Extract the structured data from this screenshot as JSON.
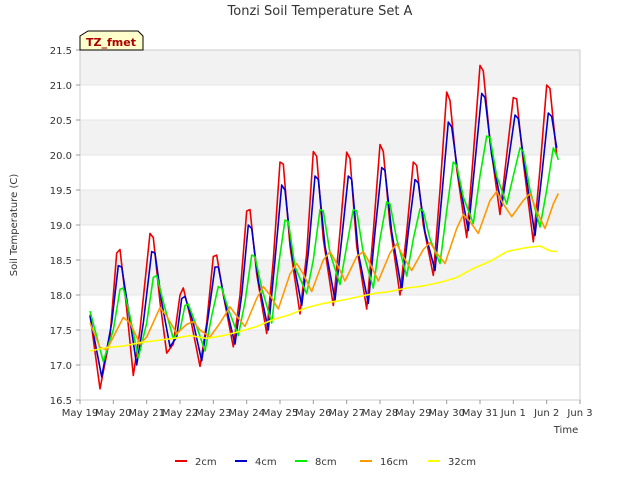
{
  "chart_data": {
    "type": "line",
    "title": "Tonzi Soil Temperature Set A",
    "xlabel": "Time",
    "ylabel": "Soil Temperature (C)",
    "annotation": "TZ_fmet",
    "xlim": [
      0,
      15
    ],
    "ylim": [
      16.5,
      21.5
    ],
    "yticks": [
      16.5,
      17.0,
      17.5,
      18.0,
      18.5,
      19.0,
      19.5,
      20.0,
      20.5,
      21.0,
      21.5
    ],
    "ytick_labels": [
      "16.5",
      "17.0",
      "17.5",
      "18.0",
      "18.5",
      "19.0",
      "19.5",
      "20.0",
      "20.5",
      "21.0",
      "21.5"
    ],
    "xtick_labels": [
      "May 19",
      "May 20",
      "May 21",
      "May 22",
      "May 23",
      "May 24",
      "May 25",
      "May 26",
      "May 27",
      "May 28",
      "May 29",
      "May 30",
      "May 31",
      "Jun 1",
      "Jun 2",
      "Jun 3"
    ],
    "grid": "horizontal bands",
    "legend_position": "bottom-center",
    "x_units": "days since May 19",
    "series": [
      {
        "name": "2cm",
        "color": "#ee0000",
        "points": [
          [
            0.3,
            17.72
          ],
          [
            0.6,
            16.66
          ],
          [
            0.9,
            17.4
          ],
          [
            1.1,
            18.6
          ],
          [
            1.2,
            18.65
          ],
          [
            1.4,
            17.8
          ],
          [
            1.6,
            16.85
          ],
          [
            1.8,
            17.5
          ],
          [
            2.1,
            18.88
          ],
          [
            2.2,
            18.82
          ],
          [
            2.4,
            17.9
          ],
          [
            2.6,
            17.17
          ],
          [
            2.8,
            17.3
          ],
          [
            3.0,
            18.0
          ],
          [
            3.1,
            18.1
          ],
          [
            3.3,
            17.7
          ],
          [
            3.6,
            16.98
          ],
          [
            3.8,
            17.6
          ],
          [
            4.0,
            18.55
          ],
          [
            4.1,
            18.57
          ],
          [
            4.3,
            18.0
          ],
          [
            4.6,
            17.26
          ],
          [
            4.8,
            18.0
          ],
          [
            5.0,
            19.2
          ],
          [
            5.1,
            19.22
          ],
          [
            5.3,
            18.3
          ],
          [
            5.6,
            17.45
          ],
          [
            5.8,
            18.5
          ],
          [
            6.0,
            19.9
          ],
          [
            6.1,
            19.87
          ],
          [
            6.3,
            18.7
          ],
          [
            6.6,
            17.73
          ],
          [
            6.8,
            18.6
          ],
          [
            7.0,
            20.05
          ],
          [
            7.1,
            19.98
          ],
          [
            7.3,
            18.8
          ],
          [
            7.6,
            17.85
          ],
          [
            7.8,
            18.9
          ],
          [
            8.0,
            20.04
          ],
          [
            8.1,
            19.95
          ],
          [
            8.3,
            18.7
          ],
          [
            8.6,
            17.8
          ],
          [
            8.8,
            18.9
          ],
          [
            9.0,
            20.15
          ],
          [
            9.1,
            20.05
          ],
          [
            9.3,
            19.0
          ],
          [
            9.6,
            18.0
          ],
          [
            9.8,
            18.9
          ],
          [
            10.0,
            19.9
          ],
          [
            10.1,
            19.85
          ],
          [
            10.3,
            19.0
          ],
          [
            10.6,
            18.28
          ],
          [
            10.8,
            19.5
          ],
          [
            11.0,
            20.9
          ],
          [
            11.1,
            20.78
          ],
          [
            11.3,
            19.8
          ],
          [
            11.6,
            18.82
          ],
          [
            11.8,
            20.0
          ],
          [
            12.0,
            21.28
          ],
          [
            12.1,
            21.2
          ],
          [
            12.3,
            20.2
          ],
          [
            12.6,
            19.15
          ],
          [
            12.8,
            20.0
          ],
          [
            13.0,
            20.82
          ],
          [
            13.1,
            20.8
          ],
          [
            13.3,
            19.9
          ],
          [
            13.6,
            18.76
          ],
          [
            13.8,
            19.8
          ],
          [
            14.0,
            21.0
          ],
          [
            14.1,
            20.95
          ],
          [
            14.3,
            20.0
          ]
        ]
      },
      {
        "name": "4cm",
        "color": "#0000cc",
        "points": [
          [
            0.3,
            17.7
          ],
          [
            0.65,
            16.83
          ],
          [
            0.95,
            17.6
          ],
          [
            1.15,
            18.42
          ],
          [
            1.25,
            18.4
          ],
          [
            1.45,
            17.8
          ],
          [
            1.7,
            17.0
          ],
          [
            1.9,
            17.6
          ],
          [
            2.15,
            18.62
          ],
          [
            2.25,
            18.6
          ],
          [
            2.45,
            17.9
          ],
          [
            2.7,
            17.26
          ],
          [
            2.9,
            17.4
          ],
          [
            3.05,
            17.95
          ],
          [
            3.15,
            17.98
          ],
          [
            3.4,
            17.6
          ],
          [
            3.65,
            17.06
          ],
          [
            3.85,
            17.7
          ],
          [
            4.05,
            18.4
          ],
          [
            4.15,
            18.4
          ],
          [
            4.35,
            17.9
          ],
          [
            4.65,
            17.3
          ],
          [
            4.85,
            18.0
          ],
          [
            5.05,
            19.0
          ],
          [
            5.15,
            18.95
          ],
          [
            5.35,
            18.2
          ],
          [
            5.65,
            17.5
          ],
          [
            5.85,
            18.5
          ],
          [
            6.05,
            19.57
          ],
          [
            6.15,
            19.5
          ],
          [
            6.35,
            18.6
          ],
          [
            6.65,
            17.85
          ],
          [
            6.85,
            18.6
          ],
          [
            7.05,
            19.7
          ],
          [
            7.15,
            19.65
          ],
          [
            7.35,
            18.7
          ],
          [
            7.65,
            17.93
          ],
          [
            7.85,
            18.8
          ],
          [
            8.05,
            19.7
          ],
          [
            8.15,
            19.65
          ],
          [
            8.35,
            18.6
          ],
          [
            8.65,
            17.88
          ],
          [
            8.85,
            18.9
          ],
          [
            9.05,
            19.82
          ],
          [
            9.15,
            19.78
          ],
          [
            9.35,
            18.9
          ],
          [
            9.65,
            18.07
          ],
          [
            9.85,
            18.9
          ],
          [
            10.05,
            19.65
          ],
          [
            10.15,
            19.6
          ],
          [
            10.35,
            18.9
          ],
          [
            10.65,
            18.35
          ],
          [
            10.85,
            19.4
          ],
          [
            11.05,
            20.47
          ],
          [
            11.15,
            20.4
          ],
          [
            11.35,
            19.7
          ],
          [
            11.65,
            18.92
          ],
          [
            11.85,
            19.9
          ],
          [
            12.05,
            20.88
          ],
          [
            12.15,
            20.82
          ],
          [
            12.35,
            20.0
          ],
          [
            12.65,
            19.27
          ],
          [
            12.85,
            19.9
          ],
          [
            13.05,
            20.57
          ],
          [
            13.15,
            20.52
          ],
          [
            13.35,
            19.8
          ],
          [
            13.65,
            18.85
          ],
          [
            13.85,
            19.7
          ],
          [
            14.05,
            20.6
          ],
          [
            14.15,
            20.55
          ],
          [
            14.3,
            20.1
          ]
        ]
      },
      {
        "name": "8cm",
        "color": "#00ee00",
        "points": [
          [
            0.3,
            17.77
          ],
          [
            0.7,
            17.05
          ],
          [
            1.0,
            17.5
          ],
          [
            1.2,
            18.08
          ],
          [
            1.3,
            18.1
          ],
          [
            1.5,
            17.7
          ],
          [
            1.75,
            17.1
          ],
          [
            2.0,
            17.6
          ],
          [
            2.2,
            18.25
          ],
          [
            2.3,
            18.28
          ],
          [
            2.5,
            17.9
          ],
          [
            2.8,
            17.38
          ],
          [
            3.0,
            17.5
          ],
          [
            3.15,
            17.85
          ],
          [
            3.25,
            17.87
          ],
          [
            3.5,
            17.55
          ],
          [
            3.75,
            17.2
          ],
          [
            3.95,
            17.7
          ],
          [
            4.15,
            18.12
          ],
          [
            4.25,
            18.1
          ],
          [
            4.45,
            17.8
          ],
          [
            4.75,
            17.42
          ],
          [
            4.95,
            17.9
          ],
          [
            5.15,
            18.57
          ],
          [
            5.25,
            18.55
          ],
          [
            5.45,
            18.1
          ],
          [
            5.75,
            17.6
          ],
          [
            5.95,
            18.4
          ],
          [
            6.15,
            19.07
          ],
          [
            6.25,
            19.05
          ],
          [
            6.45,
            18.4
          ],
          [
            6.8,
            18.02
          ],
          [
            7.0,
            18.5
          ],
          [
            7.2,
            19.22
          ],
          [
            7.3,
            19.2
          ],
          [
            7.5,
            18.6
          ],
          [
            7.8,
            18.15
          ],
          [
            8.0,
            18.7
          ],
          [
            8.2,
            19.22
          ],
          [
            8.3,
            19.2
          ],
          [
            8.5,
            18.6
          ],
          [
            8.8,
            18.1
          ],
          [
            9.0,
            18.8
          ],
          [
            9.2,
            19.33
          ],
          [
            9.3,
            19.3
          ],
          [
            9.5,
            18.8
          ],
          [
            9.8,
            18.27
          ],
          [
            10.0,
            18.8
          ],
          [
            10.2,
            19.23
          ],
          [
            10.3,
            19.2
          ],
          [
            10.5,
            18.8
          ],
          [
            10.8,
            18.45
          ],
          [
            11.0,
            19.2
          ],
          [
            11.2,
            19.9
          ],
          [
            11.3,
            19.85
          ],
          [
            11.5,
            19.4
          ],
          [
            11.8,
            19.02
          ],
          [
            12.0,
            19.7
          ],
          [
            12.2,
            20.27
          ],
          [
            12.3,
            20.25
          ],
          [
            12.5,
            19.7
          ],
          [
            12.8,
            19.3
          ],
          [
            13.0,
            19.7
          ],
          [
            13.2,
            20.1
          ],
          [
            13.3,
            20.05
          ],
          [
            13.5,
            19.5
          ],
          [
            13.8,
            18.97
          ],
          [
            14.0,
            19.5
          ],
          [
            14.2,
            20.1
          ],
          [
            14.3,
            20.0
          ],
          [
            14.35,
            19.93
          ]
        ]
      },
      {
        "name": "16cm",
        "color": "#ff9900",
        "points": [
          [
            0.3,
            17.6
          ],
          [
            0.6,
            17.25
          ],
          [
            0.8,
            17.22
          ],
          [
            1.0,
            17.4
          ],
          [
            1.3,
            17.68
          ],
          [
            1.5,
            17.6
          ],
          [
            1.8,
            17.3
          ],
          [
            2.0,
            17.4
          ],
          [
            2.4,
            17.82
          ],
          [
            2.6,
            17.7
          ],
          [
            2.9,
            17.45
          ],
          [
            3.2,
            17.58
          ],
          [
            3.4,
            17.62
          ],
          [
            3.6,
            17.5
          ],
          [
            3.9,
            17.4
          ],
          [
            4.2,
            17.6
          ],
          [
            4.5,
            17.83
          ],
          [
            4.7,
            17.7
          ],
          [
            4.95,
            17.55
          ],
          [
            5.3,
            17.95
          ],
          [
            5.5,
            18.12
          ],
          [
            5.7,
            18.0
          ],
          [
            5.95,
            17.8
          ],
          [
            6.3,
            18.3
          ],
          [
            6.5,
            18.45
          ],
          [
            6.7,
            18.3
          ],
          [
            6.95,
            18.05
          ],
          [
            7.3,
            18.5
          ],
          [
            7.5,
            18.62
          ],
          [
            7.7,
            18.45
          ],
          [
            7.95,
            18.2
          ],
          [
            8.3,
            18.55
          ],
          [
            8.5,
            18.62
          ],
          [
            8.7,
            18.45
          ],
          [
            8.95,
            18.2
          ],
          [
            9.3,
            18.6
          ],
          [
            9.5,
            18.73
          ],
          [
            9.7,
            18.55
          ],
          [
            9.95,
            18.35
          ],
          [
            10.3,
            18.65
          ],
          [
            10.5,
            18.75
          ],
          [
            10.7,
            18.6
          ],
          [
            10.95,
            18.45
          ],
          [
            11.3,
            18.95
          ],
          [
            11.5,
            19.15
          ],
          [
            11.7,
            19.05
          ],
          [
            11.95,
            18.88
          ],
          [
            12.3,
            19.35
          ],
          [
            12.5,
            19.48
          ],
          [
            12.7,
            19.3
          ],
          [
            12.95,
            19.12
          ],
          [
            13.3,
            19.35
          ],
          [
            13.5,
            19.45
          ],
          [
            13.7,
            19.2
          ],
          [
            13.95,
            18.95
          ],
          [
            14.2,
            19.3
          ],
          [
            14.35,
            19.45
          ]
        ]
      },
      {
        "name": "32cm",
        "color": "#ffff00",
        "points": [
          [
            0.3,
            17.2
          ],
          [
            0.8,
            17.25
          ],
          [
            1.3,
            17.27
          ],
          [
            1.8,
            17.32
          ],
          [
            2.3,
            17.35
          ],
          [
            2.8,
            17.38
          ],
          [
            3.3,
            17.42
          ],
          [
            3.8,
            17.38
          ],
          [
            4.3,
            17.42
          ],
          [
            4.8,
            17.48
          ],
          [
            5.3,
            17.55
          ],
          [
            5.8,
            17.65
          ],
          [
            6.3,
            17.72
          ],
          [
            6.8,
            17.82
          ],
          [
            7.3,
            17.88
          ],
          [
            7.8,
            17.92
          ],
          [
            8.3,
            17.97
          ],
          [
            8.8,
            18.02
          ],
          [
            9.3,
            18.05
          ],
          [
            9.8,
            18.1
          ],
          [
            10.3,
            18.13
          ],
          [
            10.8,
            18.18
          ],
          [
            11.3,
            18.25
          ],
          [
            11.8,
            18.38
          ],
          [
            12.3,
            18.48
          ],
          [
            12.8,
            18.62
          ],
          [
            13.3,
            18.67
          ],
          [
            13.8,
            18.7
          ],
          [
            14.1,
            18.63
          ],
          [
            14.3,
            18.62
          ]
        ]
      }
    ]
  }
}
